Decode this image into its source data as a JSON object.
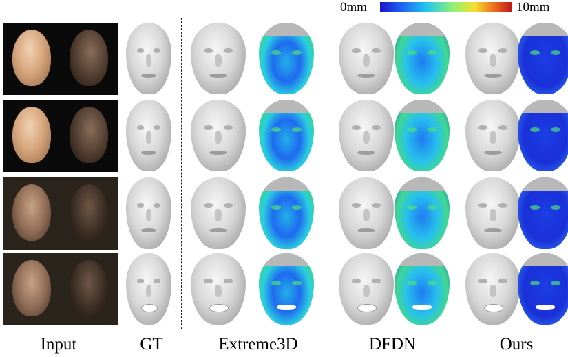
{
  "colorbar": {
    "min_label": "0mm",
    "max_label": "10mm"
  },
  "column_labels": [
    "Input",
    "GT",
    "Extreme3D",
    "DFDN",
    "Ours"
  ],
  "rows": [
    {
      "input_type": "synthetic",
      "mouth": "closed"
    },
    {
      "input_type": "synthetic",
      "mouth": "closed"
    },
    {
      "input_type": "real",
      "mouth": "closed"
    },
    {
      "input_type": "real",
      "mouth": "open"
    }
  ],
  "colors": {
    "colorbar_low": "#1a14c8",
    "colorbar_high": "#c01818",
    "mesh_gray": "#d8d8d8"
  }
}
